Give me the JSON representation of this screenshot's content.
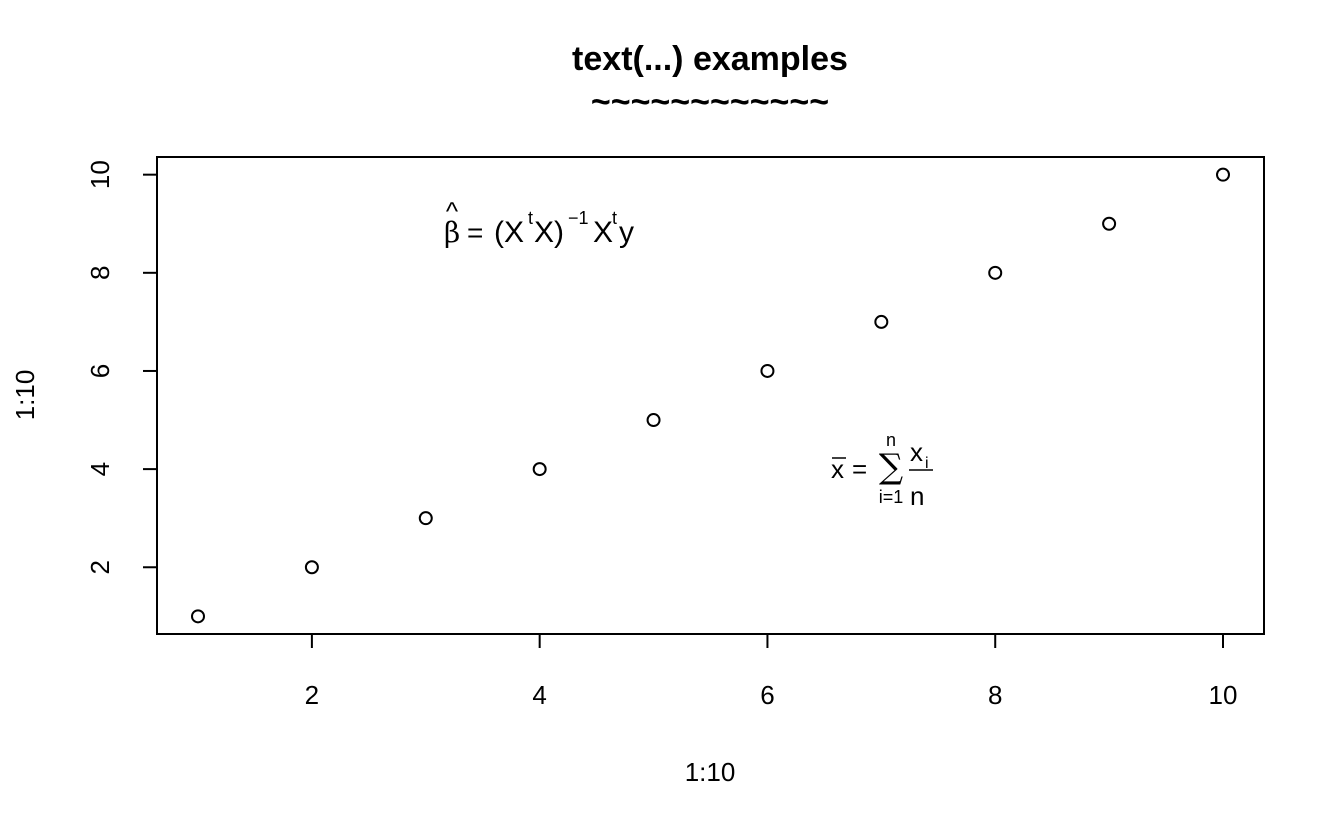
{
  "chart_data": {
    "type": "scatter",
    "title": "text(...) examples",
    "subtitle": "~~~~~~~~~~~~",
    "xlabel": "1:10",
    "ylabel": "1:10",
    "x": [
      1,
      2,
      3,
      4,
      5,
      6,
      7,
      8,
      9,
      10
    ],
    "y": [
      1,
      2,
      3,
      4,
      5,
      6,
      7,
      8,
      9,
      10
    ],
    "xlim": [
      0.64,
      10.36
    ],
    "ylim": [
      0.64,
      10.36
    ],
    "x_ticks": [
      2,
      4,
      6,
      8,
      10
    ],
    "y_ticks": [
      2,
      4,
      6,
      8,
      10
    ],
    "marker": "open-circle",
    "grid": false,
    "annotations": [
      {
        "name": "beta-hat-formula",
        "x": 4.3,
        "y": 9,
        "parts": {
          "beta": "β",
          "hat": "^",
          "eq": "=",
          "open": "(X",
          "t1": "t",
          "close": "X)",
          "inv": "−1",
          "x2": "X",
          "t2": "t",
          "y": "y"
        }
      },
      {
        "name": "xbar-formula",
        "x": 7.2,
        "y": 4,
        "parts": {
          "xbar": "x",
          "eq": "=",
          "sigma": "∑",
          "upper": "n",
          "lower": "i=1",
          "num": "x",
          "num_sub": "i",
          "den": "n"
        }
      }
    ]
  }
}
